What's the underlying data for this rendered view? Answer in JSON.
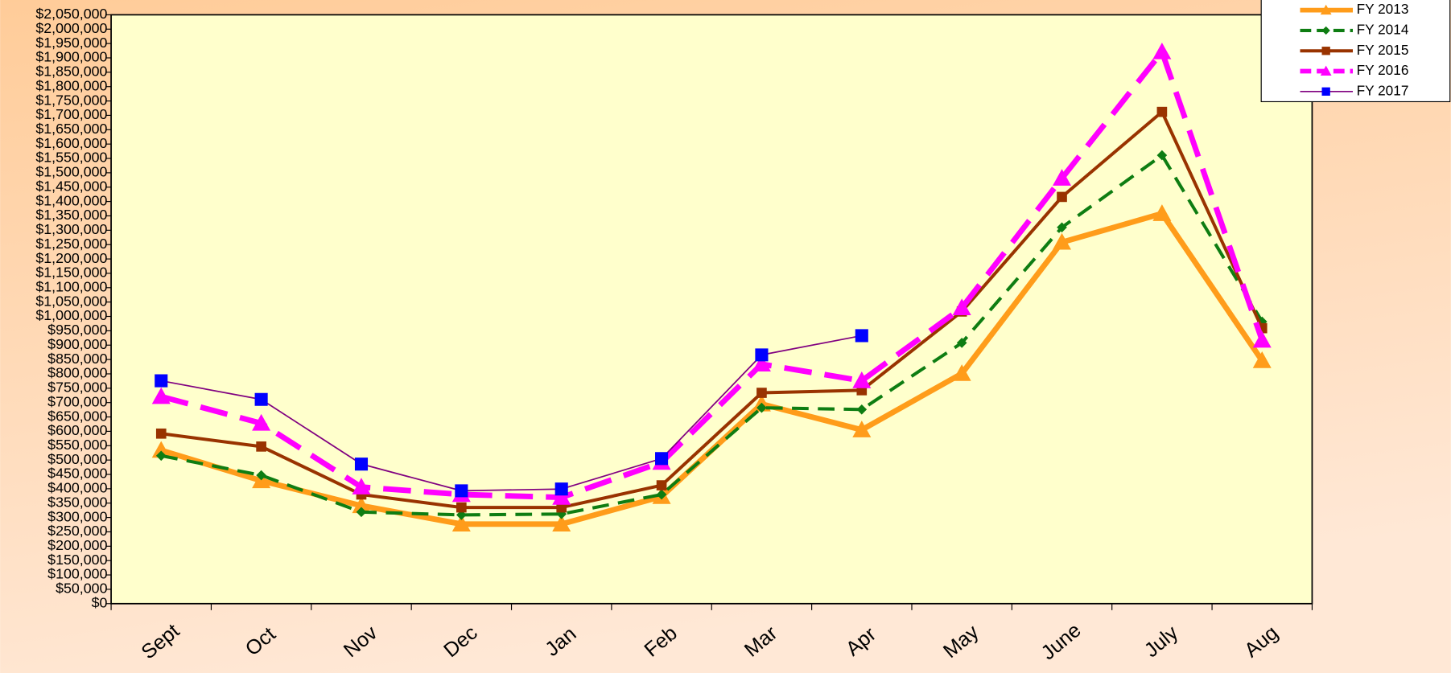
{
  "chart_data": {
    "type": "line",
    "categories": [
      "Sept",
      "Oct",
      "Nov",
      "Dec",
      "Jan",
      "Feb",
      "Mar",
      "Apr",
      "May",
      "June",
      "July",
      "Aug"
    ],
    "series": [
      {
        "name": "FY 2013",
        "color": "#ff9c1a",
        "dash": false,
        "width": 6,
        "marker": "triangle",
        "values": [
          534000,
          428000,
          341000,
          277000,
          277000,
          373000,
          695000,
          605000,
          801000,
          1258000,
          1358000,
          846000
        ]
      },
      {
        "name": "FY 2014",
        "color": "#0e7d12",
        "dash": true,
        "width": 3.5,
        "marker": "diamond",
        "values": [
          515000,
          447000,
          319000,
          309000,
          312000,
          380000,
          682000,
          676000,
          908000,
          1310000,
          1561000,
          982000
        ]
      },
      {
        "name": "FY 2015",
        "color": "#993300",
        "dash": false,
        "width": 3.5,
        "marker": "square",
        "values": [
          592000,
          547000,
          380000,
          335000,
          335000,
          412000,
          734000,
          743000,
          1017000,
          1416000,
          1712000,
          959000
        ]
      },
      {
        "name": "FY 2016",
        "color": "#ff00ff",
        "dash": true,
        "width": 6,
        "marker": "triangle",
        "values": [
          721000,
          628000,
          406000,
          380000,
          370000,
          492000,
          834000,
          776000,
          1030000,
          1481000,
          1921000,
          917000
        ]
      },
      {
        "name": "FY 2017",
        "color": "#800080",
        "marker_color": "#0000ff",
        "dash": false,
        "width": 1.5,
        "marker": "square",
        "values": [
          776000,
          711000,
          486000,
          393000,
          399000,
          505000,
          866000,
          933000,
          null,
          null,
          null,
          null
        ]
      }
    ],
    "ylim": [
      0,
      2050000
    ],
    "yticks": [
      {
        "value": 0,
        "label": "$0"
      },
      {
        "value": 50000,
        "label": "$50,000"
      },
      {
        "value": 100000,
        "label": "$100,000"
      },
      {
        "value": 150000,
        "label": "$150,000"
      },
      {
        "value": 200000,
        "label": "$200,000"
      },
      {
        "value": 250000,
        "label": "$250,000"
      },
      {
        "value": 300000,
        "label": "$300,000"
      },
      {
        "value": 350000,
        "label": "$350,000"
      },
      {
        "value": 400000,
        "label": "$400,000"
      },
      {
        "value": 450000,
        "label": "$450,000"
      },
      {
        "value": 500000,
        "label": "$500,000"
      },
      {
        "value": 550000,
        "label": "$550,000"
      },
      {
        "value": 600000,
        "label": "$600,000"
      },
      {
        "value": 650000,
        "label": "$650,000"
      },
      {
        "value": 700000,
        "label": "$700,000"
      },
      {
        "value": 750000,
        "label": "$750,000"
      },
      {
        "value": 800000,
        "label": "$800,000"
      },
      {
        "value": 850000,
        "label": "$850,000"
      },
      {
        "value": 900000,
        "label": "$900,000"
      },
      {
        "value": 950000,
        "label": "$950,000"
      },
      {
        "value": 1000000,
        "label": "$1,000,000"
      },
      {
        "value": 1050000,
        "label": "$1,050,000"
      },
      {
        "value": 1100000,
        "label": "$1,100,000"
      },
      {
        "value": 1150000,
        "label": "$1,150,000"
      },
      {
        "value": 1200000,
        "label": "$1,200,000"
      },
      {
        "value": 1250000,
        "label": "$1,250,000"
      },
      {
        "value": 1300000,
        "label": "$1,300,000"
      },
      {
        "value": 1350000,
        "label": "$1,350,000"
      },
      {
        "value": 1400000,
        "label": "$1,400,000"
      },
      {
        "value": 1450000,
        "label": "$1,450,000"
      },
      {
        "value": 1500000,
        "label": "$1,500,000"
      },
      {
        "value": 1550000,
        "label": "$1,550,000"
      },
      {
        "value": 1600000,
        "label": "$1,600,000"
      },
      {
        "value": 1650000,
        "label": "$1,650,000"
      },
      {
        "value": 1700000,
        "label": "$1,700,000"
      },
      {
        "value": 1750000,
        "label": "$1,750,000"
      },
      {
        "value": 1800000,
        "label": "$1,800,000"
      },
      {
        "value": 1850000,
        "label": "$1,850,000"
      },
      {
        "value": 1900000,
        "label": "$1,900,000"
      },
      {
        "value": 1950000,
        "label": "$1,950,000"
      },
      {
        "value": 2000000,
        "label": "$2,000,000"
      },
      {
        "value": 2050000,
        "label": "$2,050,000"
      }
    ],
    "plot_background": "#ffffcc",
    "legend": "top-right",
    "grid": false
  }
}
